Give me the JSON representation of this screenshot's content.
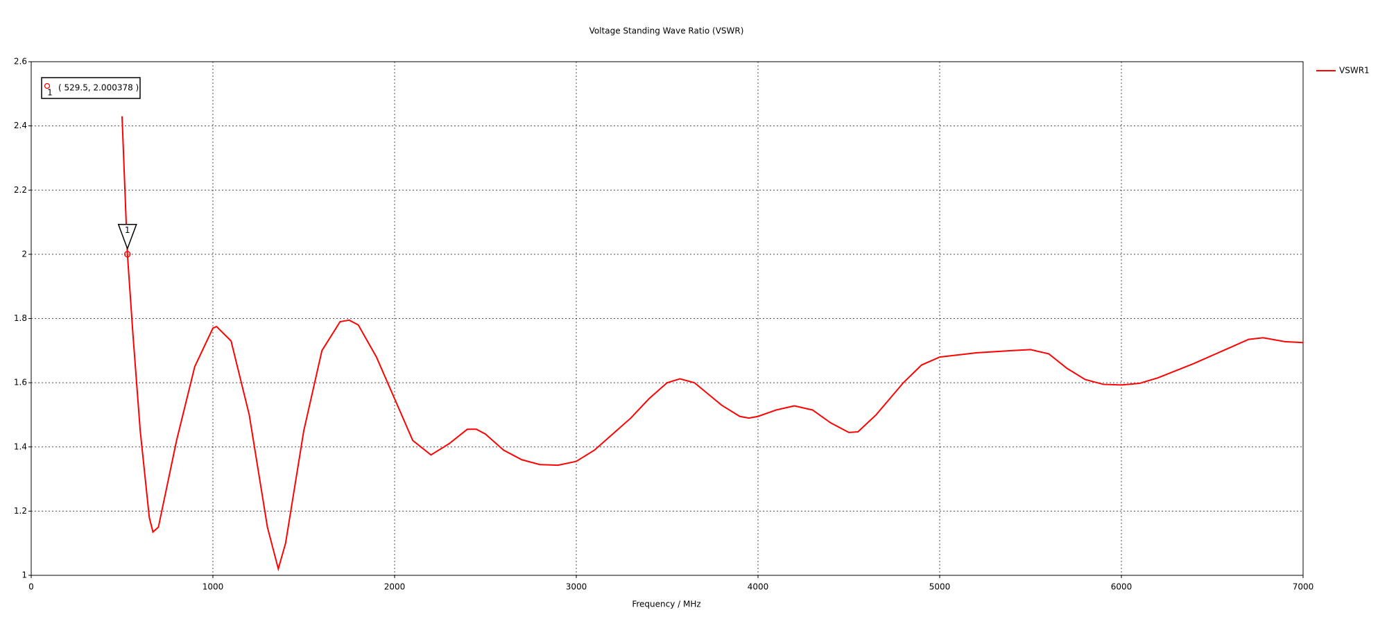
{
  "chart_data": {
    "type": "line",
    "title": "Voltage Standing Wave Ratio (VSWR)",
    "x_label": "Frequency / MHz",
    "x": [
      500,
      529.5,
      560,
      600,
      650,
      670,
      700,
      800,
      900,
      1000,
      1020,
      1100,
      1200,
      1300,
      1360,
      1400,
      1500,
      1600,
      1700,
      1750,
      1800,
      1900,
      2000,
      2100,
      2200,
      2300,
      2400,
      2450,
      2500,
      2600,
      2700,
      2800,
      2900,
      3000,
      3100,
      3200,
      3300,
      3400,
      3500,
      3570,
      3650,
      3800,
      3900,
      3950,
      4000,
      4100,
      4200,
      4300,
      4400,
      4500,
      4550,
      4650,
      4800,
      4900,
      5000,
      5200,
      5400,
      5500,
      5600,
      5700,
      5800,
      5900,
      6000,
      6100,
      6200,
      6400,
      6600,
      6700,
      6780,
      6900,
      7000
    ],
    "series": [
      {
        "name": "VSWR1",
        "color": "#ff0000",
        "values": [
          2.43,
          2.0004,
          1.75,
          1.45,
          1.18,
          1.135,
          1.15,
          1.42,
          1.65,
          1.77,
          1.775,
          1.73,
          1.5,
          1.15,
          1.02,
          1.1,
          1.45,
          1.7,
          1.79,
          1.795,
          1.78,
          1.68,
          1.55,
          1.42,
          1.375,
          1.41,
          1.455,
          1.455,
          1.44,
          1.39,
          1.36,
          1.345,
          1.343,
          1.355,
          1.39,
          1.44,
          1.49,
          1.55,
          1.6,
          1.612,
          1.6,
          1.53,
          1.495,
          1.49,
          1.495,
          1.515,
          1.528,
          1.515,
          1.475,
          1.445,
          1.447,
          1.5,
          1.6,
          1.655,
          1.68,
          1.693,
          1.7,
          1.703,
          1.69,
          1.645,
          1.61,
          1.595,
          1.593,
          1.598,
          1.615,
          1.66,
          1.71,
          1.735,
          1.74,
          1.728,
          1.725
        ]
      }
    ],
    "markers": [
      {
        "id": "1",
        "x": 529.5,
        "y": 2.000378,
        "label": "( 529.5, 2.000378 )"
      }
    ],
    "xlim": [
      0,
      7000
    ],
    "xticks": [
      0,
      1000,
      2000,
      3000,
      4000,
      5000,
      6000,
      7000
    ],
    "ylim": [
      1,
      2.6
    ],
    "yticks": [
      1,
      1.2,
      1.4,
      1.6,
      1.8,
      2,
      2.2,
      2.4,
      2.6
    ],
    "grid": true,
    "legend": "right"
  }
}
